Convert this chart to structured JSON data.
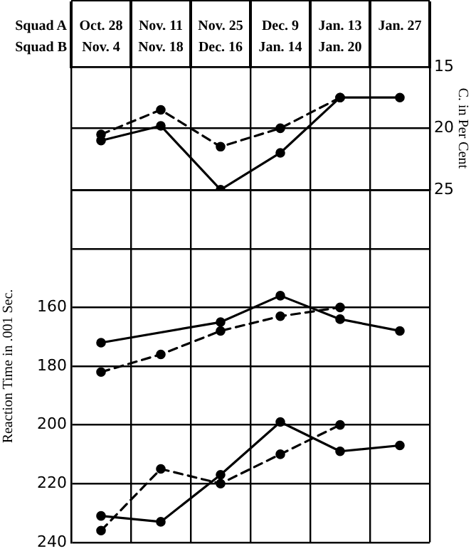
{
  "chart_data": [
    {
      "type": "line",
      "categories": [
        "Oct. 28\nNov. 4",
        "Nov. 11\nNov. 18",
        "Nov. 25\nDec. 16",
        "Dec. 9\nJan. 14",
        "Jan. 13\nJan. 20",
        "Jan. 27"
      ],
      "annotations": [
        "Squad A",
        "Squad B"
      ],
      "ylabel": "C. in Per Cent",
      "ylim": [
        25,
        15
      ],
      "yticks": [
        15,
        20,
        25
      ],
      "grid": true,
      "marker": "circle",
      "series": [
        {
          "color": "#000000",
          "line_style": "solid",
          "values": [
            21,
            19.8,
            25,
            22,
            17.5,
            17.5
          ]
        },
        {
          "color": "#000000",
          "line_style": "dashed",
          "values": [
            20.5,
            18.5,
            21.5,
            20,
            17.5,
            null
          ]
        }
      ]
    },
    {
      "type": "line",
      "categories": [
        null,
        null,
        null,
        null,
        null,
        null
      ],
      "tick_labels": "y",
      "ylabel": "Reaction Time in .001 Sec.",
      "ylim": [
        240,
        120
      ],
      "yticks": [
        {
          "value": 120,
          "label": null
        },
        {
          "value": 140,
          "label": null
        },
        160,
        180,
        200,
        220,
        240
      ],
      "grid": true,
      "marker": "circle",
      "series": [
        {
          "color": "#000000",
          "line_style": "solid",
          "values": [
            172,
            null,
            165,
            156,
            164,
            168
          ]
        },
        {
          "color": "#000000",
          "line_style": "dashed",
          "values": [
            182,
            176,
            168,
            163,
            160,
            null
          ]
        },
        {
          "color": "#000000",
          "line_style": "solid",
          "values": [
            231,
            233,
            217,
            199,
            209,
            207
          ]
        },
        {
          "color": "#000000",
          "line_style": "dashed",
          "values": [
            236,
            215,
            220,
            210,
            200,
            null
          ]
        }
      ]
    }
  ]
}
